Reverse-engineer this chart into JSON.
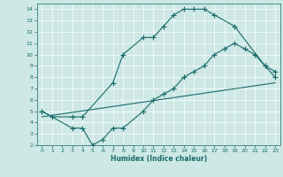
{
  "xlabel": "Humidex (Indice chaleur)",
  "xlim": [
    -0.5,
    23.5
  ],
  "ylim": [
    2,
    14.5
  ],
  "xticks": [
    0,
    1,
    2,
    3,
    4,
    5,
    6,
    7,
    8,
    9,
    10,
    11,
    12,
    13,
    14,
    15,
    16,
    17,
    18,
    19,
    20,
    21,
    22,
    23
  ],
  "yticks": [
    2,
    3,
    4,
    5,
    6,
    7,
    8,
    9,
    10,
    11,
    12,
    13,
    14
  ],
  "bg_color": "#cde8e5",
  "line_color": "#1a6b6b",
  "line1_x": [
    0,
    1,
    3,
    4,
    7,
    8,
    10,
    11,
    12,
    13,
    14,
    15,
    16,
    17,
    19,
    22,
    23
  ],
  "line1_y": [
    5,
    4.5,
    4.5,
    4.5,
    7.5,
    10,
    11.5,
    11.5,
    12.5,
    13.5,
    14,
    14,
    14,
    13.5,
    12.5,
    9,
    8
  ],
  "line2_x": [
    0,
    3,
    4,
    5,
    6,
    7,
    8,
    10,
    11,
    12,
    13,
    14,
    15,
    16,
    17,
    18,
    19,
    20,
    21,
    22,
    23
  ],
  "line2_y": [
    5,
    3.5,
    3.5,
    2,
    2.5,
    3.5,
    3.5,
    5,
    6,
    6.5,
    7,
    8,
    8.5,
    9,
    10,
    10.5,
    11,
    10.5,
    10,
    9,
    8.5
  ],
  "line3_x": [
    0,
    23
  ],
  "line3_y": [
    4.5,
    7.5
  ],
  "markersize": 2.5,
  "linewidth": 0.8
}
